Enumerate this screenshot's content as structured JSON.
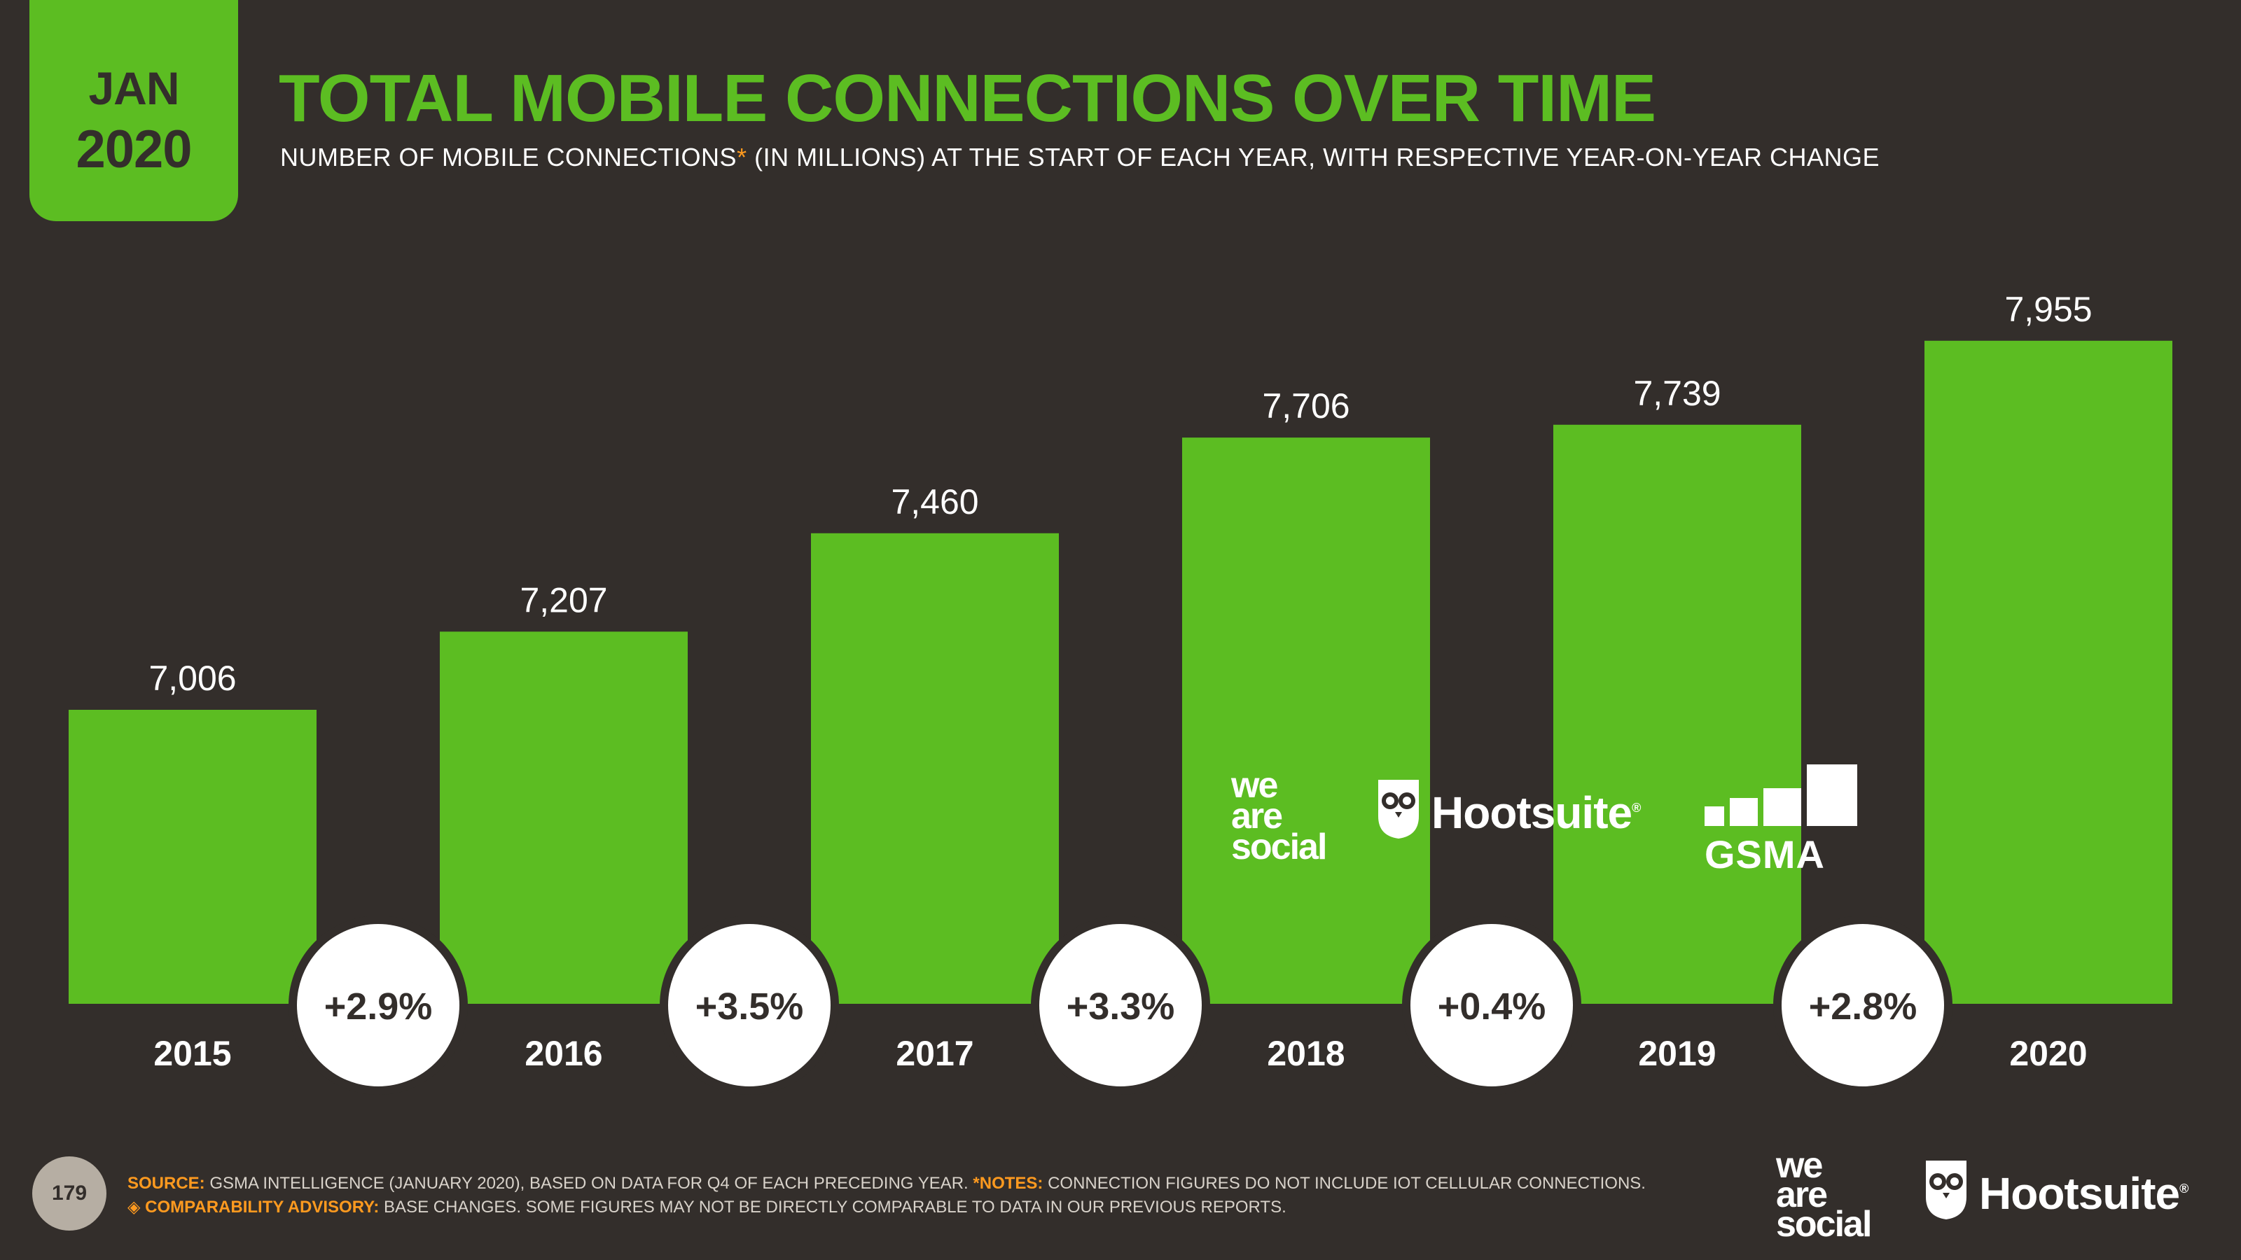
{
  "header": {
    "badge_month": "JAN",
    "badge_year": "2020",
    "title": "TOTAL MOBILE CONNECTIONS OVER TIME",
    "subtitle_before": "NUMBER OF MOBILE CONNECTIONS",
    "subtitle_asterisk": "*",
    "subtitle_after": " (IN MILLIONS) AT THE START OF EACH YEAR, WITH RESPECTIVE YEAR-ON-YEAR CHANGE"
  },
  "chart_data": {
    "type": "bar",
    "title": "TOTAL MOBILE CONNECTIONS OVER TIME",
    "subtitle": "NUMBER OF MOBILE CONNECTIONS* (IN MILLIONS) AT THE START OF EACH YEAR, WITH RESPECTIVE YEAR-ON-YEAR CHANGE",
    "categories": [
      "2015",
      "2016",
      "2017",
      "2018",
      "2019",
      "2020"
    ],
    "values": [
      7006,
      7207,
      7460,
      7706,
      7739,
      7955
    ],
    "value_labels": [
      "7,006",
      "7,207",
      "7,460",
      "7,706",
      "7,739",
      "7,955"
    ],
    "yoy_changes": [
      "+2.9%",
      "+3.5%",
      "+3.3%",
      "+0.4%",
      "+2.8%"
    ],
    "ylim": [
      6250,
      8050
    ],
    "grid": false,
    "legend": "none",
    "xlabel": "",
    "ylabel": ""
  },
  "logos": {
    "was_line1": "we",
    "was_line2": "are",
    "was_line3": "social",
    "hootsuite": "Hootsuite",
    "registered": "®",
    "gsma": "GSMA"
  },
  "footer": {
    "page_number": "179",
    "source_key": "SOURCE:",
    "source_text": " GSMA INTELLIGENCE (JANUARY 2020), BASED ON DATA FOR Q4 OF EACH PRECEDING YEAR. ",
    "notes_key": "*NOTES:",
    "notes_text": " CONNECTION FIGURES DO NOT INCLUDE IOT CELLULAR CONNECTIONS.",
    "advisory_icon": "◈",
    "advisory_key": "COMPARABILITY ADVISORY:",
    "advisory_text": " BASE CHANGES. SOME FIGURES MAY NOT BE DIRECTLY COMPARABLE TO DATA IN OUR PREVIOUS REPORTS."
  },
  "colors": {
    "background": "#332e2b",
    "accent_green": "#5cbd22",
    "note_orange": "#ff9a1f",
    "bubble_white": "#ffffff",
    "dark_text": "#332e2b"
  },
  "icons": [
    "owl-icon",
    "gsma-bars-icon",
    "comparability-icon"
  ]
}
